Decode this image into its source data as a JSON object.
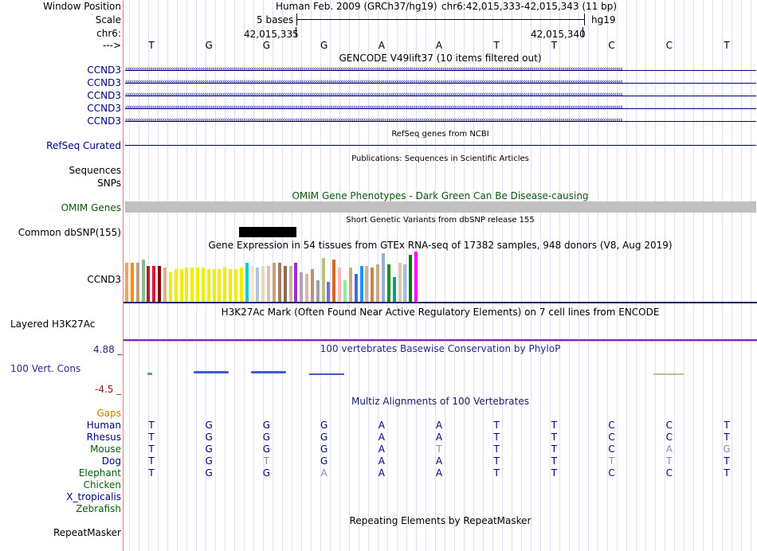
{
  "header": {
    "window_position_label": "Window Position",
    "scale_label": "Scale",
    "chr_label": "chr6:",
    "arrow_label": "--->",
    "assembly_title": "Human Feb. 2009 (GRCh37/hg19)",
    "position_range": "chr6:42,015,333-42,015,343 (11 bp)",
    "scale_text": "5 bases",
    "scale_db": "hg19",
    "coord_left": "42,015,335",
    "coord_right": "42,015,340"
  },
  "bases": [
    "T",
    "G",
    "G",
    "G",
    "A",
    "A",
    "T",
    "T",
    "C",
    "C",
    "T"
  ],
  "tracks": {
    "gencode": {
      "title": "GENCODE V49lift37 (10 items filtered out)",
      "items": [
        "CCND3",
        "CCND3",
        "CCND3",
        "CCND3",
        "CCND3"
      ]
    },
    "refseq": {
      "title": "RefSeq genes from NCBI",
      "label": "RefSeq Curated"
    },
    "publications": {
      "title": "Publications: Sequences in Scientific Articles",
      "label_sequences": "Sequences",
      "label_snps": "SNPs"
    },
    "omim": {
      "title": "OMIM Gene Phenotypes - Dark Green Can Be Disease-causing",
      "label": "OMIM Genes"
    },
    "dbsnp": {
      "title": "Short Genetic Variants from dbSNP release 155",
      "label": "Common dbSNP(155)"
    },
    "gtex": {
      "title": "Gene Expression in 54 tissues from GTEx RNA-seq of 17382 samples, 948 donors (V8, Aug 2019)",
      "label": "CCND3",
      "levels": [
        0.62,
        0.62,
        0.62,
        0.68,
        0.57,
        0.57,
        0.57,
        0.55,
        0.48,
        0.52,
        0.52,
        0.55,
        0.55,
        0.55,
        0.55,
        0.52,
        0.52,
        0.52,
        0.55,
        0.52,
        0.52,
        0.55,
        0.62,
        0.58,
        0.55,
        0.58,
        0.58,
        0.62,
        0.62,
        0.58,
        0.58,
        0.62,
        0.48,
        0.45,
        0.52,
        0.35,
        0.7,
        0.32,
        0.68,
        0.55,
        0.35,
        0.55,
        0.45,
        0.58,
        0.58,
        0.55,
        0.6,
        0.78,
        0.6,
        0.4,
        0.62,
        0.6,
        0.75,
        0.8
      ],
      "colors": [
        "#f4a460",
        "#ff8c00",
        "#c0a080",
        "#8fbc8f",
        "#b22222",
        "#dc143c",
        "#8b0000",
        "#d2b48c",
        "#eeee00",
        "#eeee00",
        "#eeee00",
        "#eeee00",
        "#eeee00",
        "#eeee00",
        "#eeee00",
        "#eeee00",
        "#eeee00",
        "#eeee00",
        "#eeee00",
        "#eeee00",
        "#eeee00",
        "#eeee00",
        "#00ced1",
        "#ffe4c4",
        "#b0c4de",
        "#eed5b7",
        "#e0c0b0",
        "#c8a080",
        "#a08060",
        "#8b6a4a",
        "#d0b0a0",
        "#9932cc",
        "#b0a0c0",
        "#d8b8a8",
        "#c09070",
        "#a0a0a0",
        "#b8c080",
        "#7b68ee",
        "#d2691e",
        "#ffb6c1",
        "#90ee90",
        "#cdaa7d",
        "#4169e1",
        "#1e90ff",
        "#d2b48c",
        "#cd853f",
        "#c8a888",
        "#9ab0c8",
        "#228b22",
        "#00a080",
        "#d8c8a8",
        "#a0c0e0",
        "#008000",
        "#ff00ff"
      ]
    },
    "h3k27ac": {
      "title": "H3K27Ac Mark (Often Found Near Active Regulatory Elements) on 7 cell lines from ENCODE",
      "label": "Layered H3K27Ac"
    },
    "phylop": {
      "title": "100 vertebrates Basewise Conservation by PhyloP",
      "label": "100 Vert. Cons",
      "axis_max": "4.88 _",
      "axis_min": "-4.5 _"
    },
    "multiz": {
      "title": "Multiz Alignments of 100 Vertebrates",
      "gaps_label": "Gaps",
      "species": [
        {
          "name": "Human",
          "bases": [
            "T",
            "G",
            "G",
            "G",
            "A",
            "A",
            "T",
            "T",
            "C",
            "C",
            "T"
          ],
          "faded": []
        },
        {
          "name": "Rhesus",
          "bases": [
            "T",
            "G",
            "G",
            "G",
            "A",
            "A",
            "T",
            "T",
            "C",
            "C",
            "T"
          ],
          "faded": []
        },
        {
          "name": "Mouse",
          "bases": [
            "T",
            "G",
            "G",
            "G",
            "A",
            "T",
            "T",
            "T",
            "C",
            "A",
            "G"
          ],
          "faded": [
            5,
            9,
            10
          ]
        },
        {
          "name": "Dog",
          "bases": [
            "T",
            "G",
            "T",
            "G",
            "A",
            "A",
            "T",
            "T",
            "T",
            "T",
            "T"
          ],
          "faded": [
            2,
            8,
            9
          ]
        },
        {
          "name": "Elephant",
          "bases": [
            "T",
            "G",
            "G",
            "A",
            "A",
            "A",
            "T",
            "T",
            "C",
            "C",
            "T"
          ],
          "faded": [
            3
          ]
        },
        {
          "name": "Chicken",
          "bases": [],
          "faded": []
        },
        {
          "name": "X_tropicalis",
          "bases": [],
          "faded": []
        },
        {
          "name": "Zebrafish",
          "bases": [],
          "faded": []
        }
      ]
    },
    "repeatmasker": {
      "title": "Repeating Elements by RepeatMasker",
      "label": "RepeatMasker"
    }
  },
  "colors": {
    "gene_navy": "#000080",
    "omim_green": "#0b5a0b",
    "gaps_orange": "#d08000",
    "faded_base": "#8a8ab0"
  }
}
